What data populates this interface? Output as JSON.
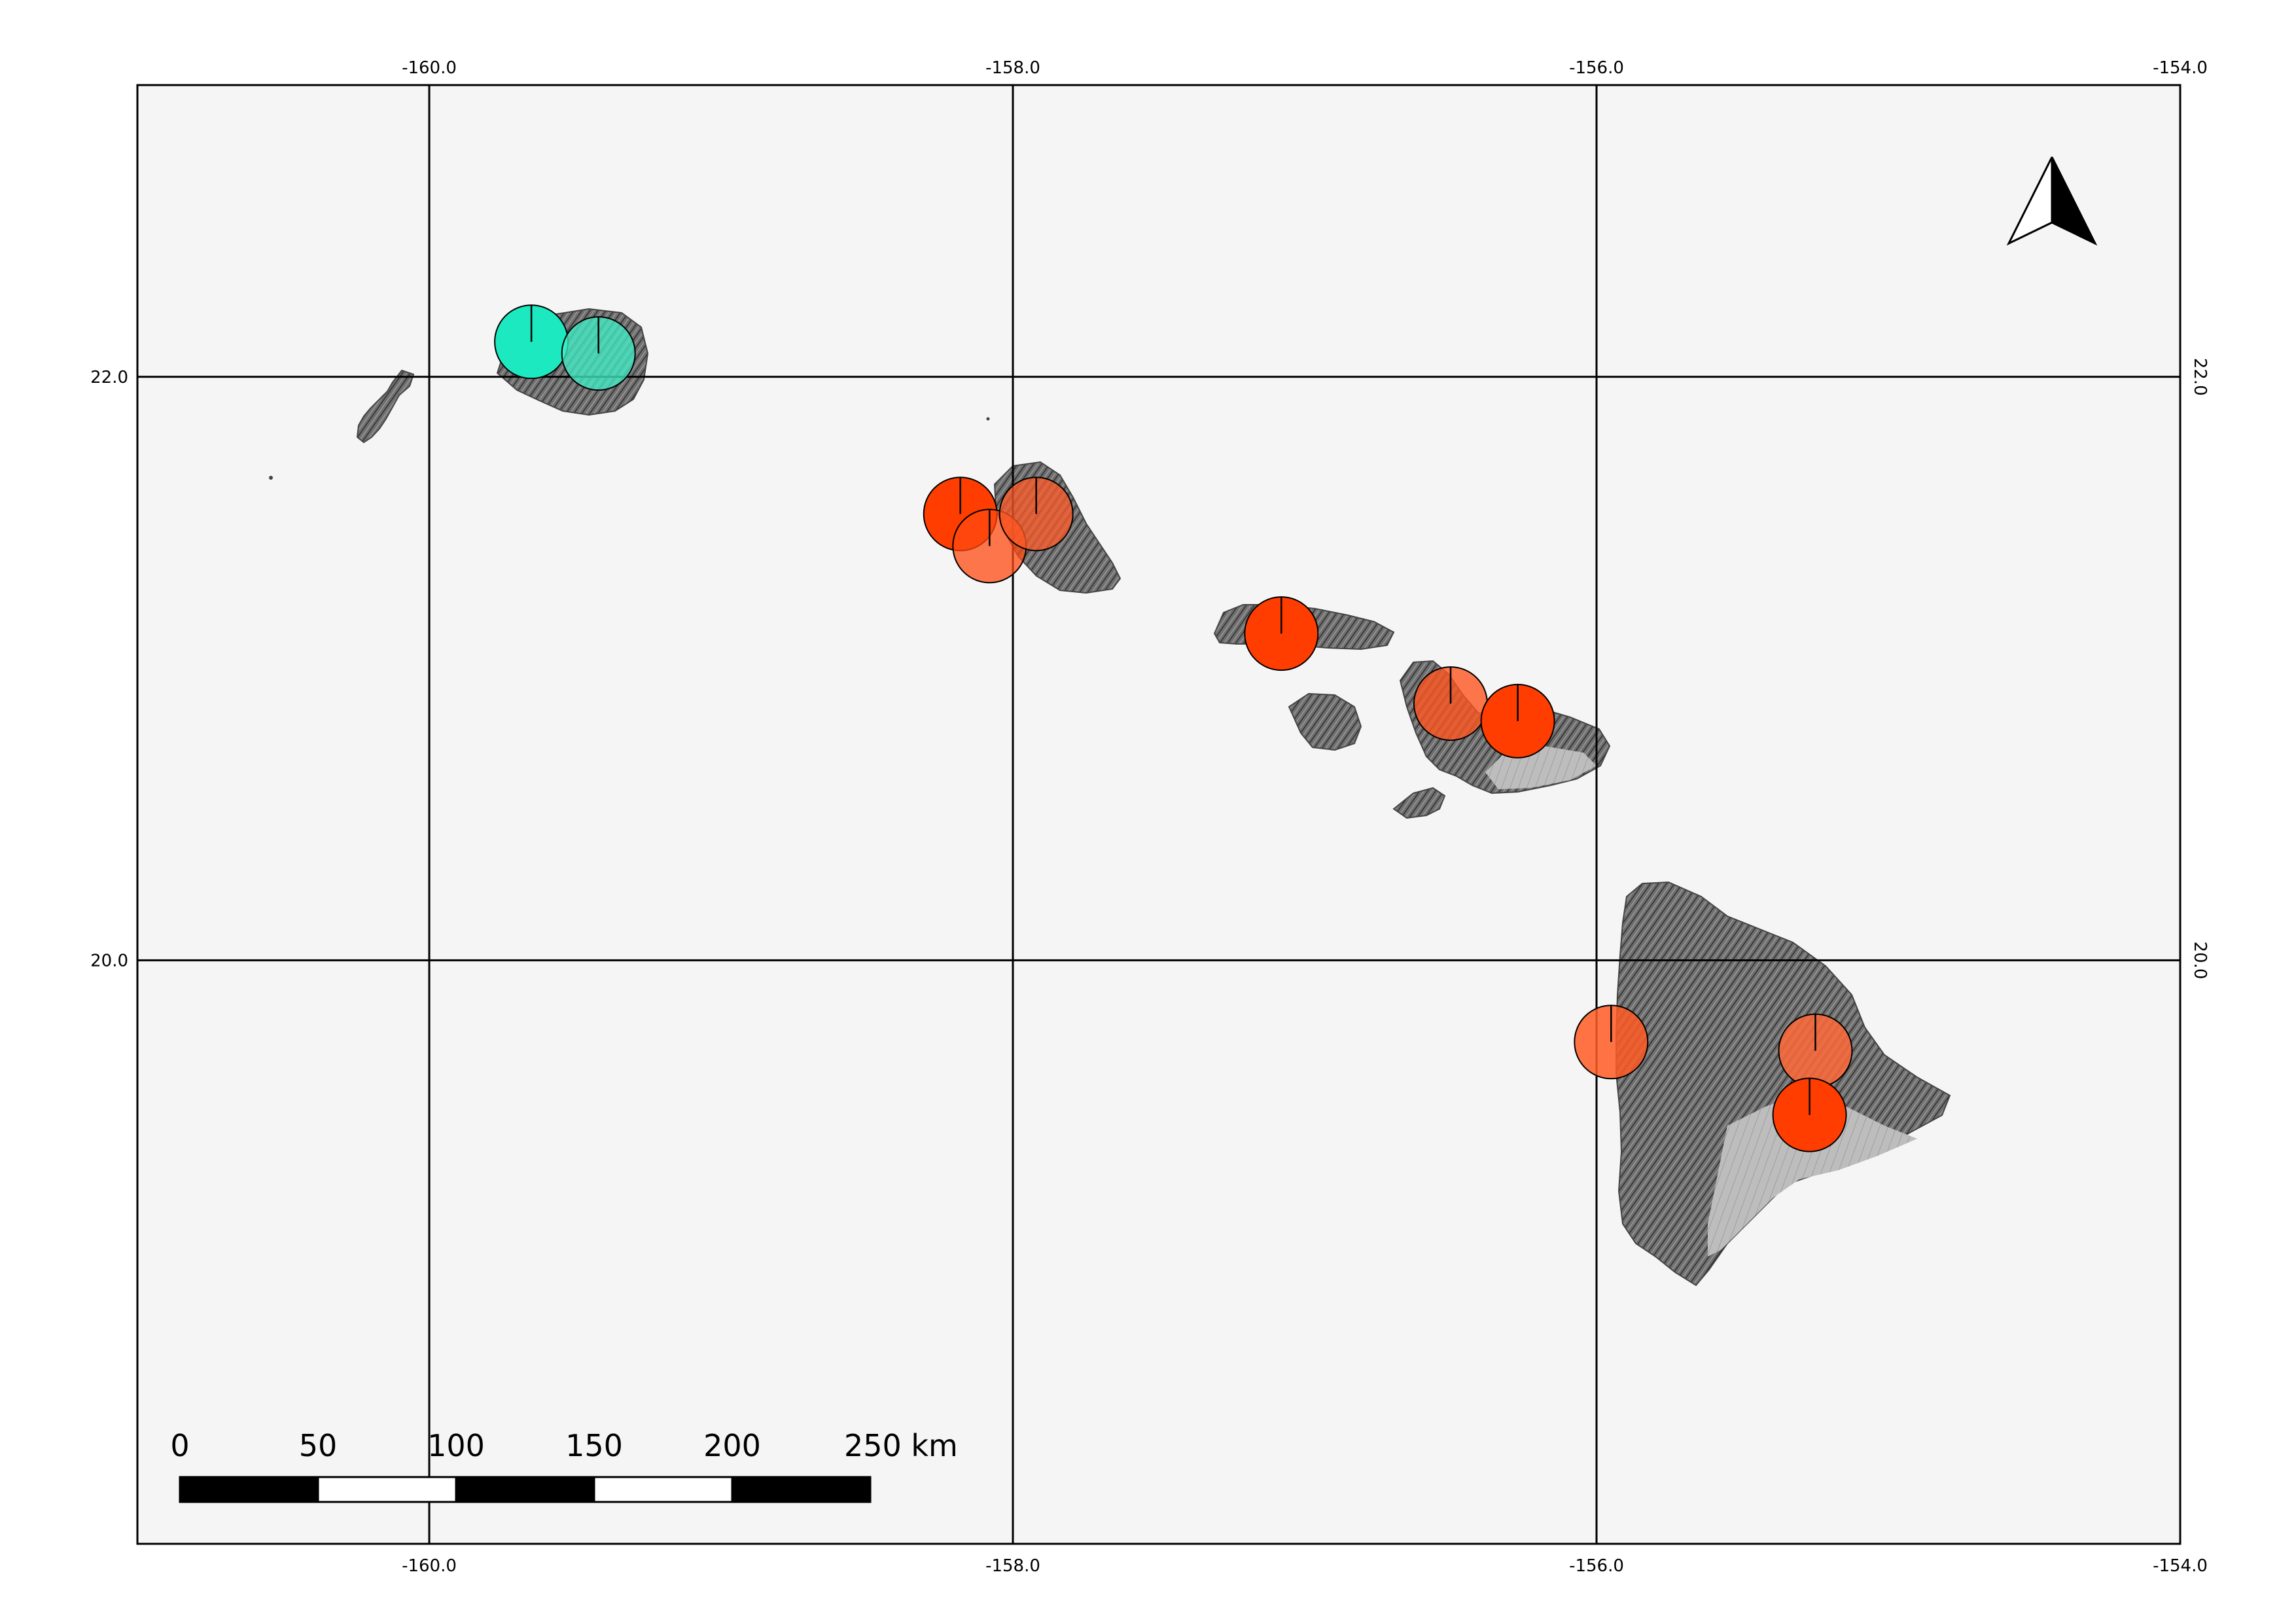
{
  "map": {
    "frame": {
      "lon_min": -161.0,
      "lon_max": -154.0,
      "lat_min": 18.0,
      "lat_max": 23.0
    },
    "background_color": "#f5f5f5",
    "grid_color": "#000000",
    "grid": {
      "longitudes": [
        -160.0,
        -158.0,
        -156.0,
        -154.0
      ],
      "latitudes": [
        22.0,
        20.0
      ],
      "lon_labels": [
        "-160.0",
        "-158.0",
        "-156.0",
        "-154.0"
      ],
      "lat_labels": [
        "22.0",
        "20.0"
      ]
    },
    "north_arrow": {
      "icon": "north-arrow-icon"
    },
    "scale_bar": {
      "labels": [
        "0",
        "50",
        "100",
        "150",
        "200",
        "250 km"
      ],
      "segments": 5
    },
    "islands": [
      {
        "name": "niihau",
        "lon": -160.1,
        "lat": 21.9
      },
      {
        "name": "kauai",
        "lon": -159.5,
        "lat": 22.05
      },
      {
        "name": "oahu",
        "lon": -157.95,
        "lat": 21.45
      },
      {
        "name": "molokai",
        "lon": -157.0,
        "lat": 21.13
      },
      {
        "name": "lanai",
        "lon": -156.93,
        "lat": 20.83
      },
      {
        "name": "maui",
        "lon": -156.3,
        "lat": 20.8
      },
      {
        "name": "kahoolawe",
        "lon": -156.6,
        "lat": 20.55
      },
      {
        "name": "hawaii",
        "lon": -155.5,
        "lat": 19.6
      }
    ],
    "markers": [
      {
        "lon": -159.65,
        "lat": 22.12,
        "color": "#1de9c0",
        "opacity": 1.0
      },
      {
        "lon": -159.42,
        "lat": 22.08,
        "color": "#3ff0c8",
        "opacity": 0.75
      },
      {
        "lon": -158.18,
        "lat": 21.53,
        "color": "#ff3d00",
        "opacity": 1.0
      },
      {
        "lon": -158.08,
        "lat": 21.42,
        "color": "#ff4a10",
        "opacity": 0.75
      },
      {
        "lon": -157.92,
        "lat": 21.53,
        "color": "#ff5a25",
        "opacity": 0.75
      },
      {
        "lon": -157.08,
        "lat": 21.12,
        "color": "#ff3d00",
        "opacity": 1.0
      },
      {
        "lon": -156.5,
        "lat": 20.88,
        "color": "#ff5520",
        "opacity": 0.8
      },
      {
        "lon": -156.27,
        "lat": 20.82,
        "color": "#ff3d00",
        "opacity": 1.0
      },
      {
        "lon": -155.95,
        "lat": 19.72,
        "color": "#ff5a25",
        "opacity": 0.85
      },
      {
        "lon": -155.25,
        "lat": 19.69,
        "color": "#ff6a3a",
        "opacity": 0.85
      },
      {
        "lon": -155.27,
        "lat": 19.47,
        "color": "#ff3d00",
        "opacity": 1.0
      }
    ]
  }
}
